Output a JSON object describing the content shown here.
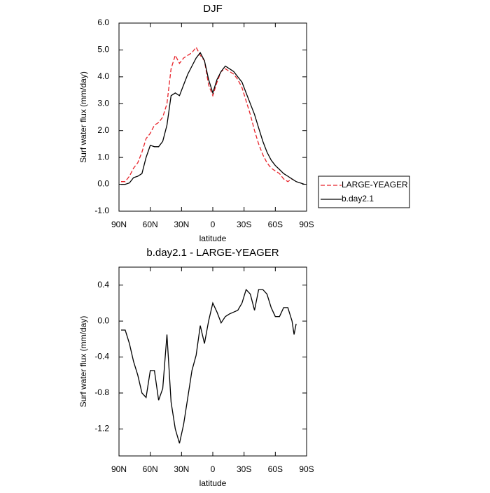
{
  "chart_data": [
    {
      "type": "line",
      "title": "DJF",
      "xlabel": "latitude",
      "ylabel": "Surf water flux (mm/day)",
      "x": [
        88,
        84,
        80,
        76,
        72,
        68,
        64,
        60,
        56,
        52,
        48,
        44,
        40,
        36,
        32,
        28,
        24,
        20,
        16,
        12,
        8,
        4,
        0,
        -4,
        -8,
        -12,
        -16,
        -20,
        -24,
        -28,
        -32,
        -36,
        -40,
        -44,
        -48,
        -52,
        -56,
        -60,
        -64,
        -68,
        -72,
        -76,
        -80,
        -84,
        -88
      ],
      "series": [
        {
          "name": "LARGE-YEAGER",
          "color": "#e8232a",
          "linestyle": "dashed",
          "values": [
            0.1,
            0.1,
            0.3,
            0.6,
            0.8,
            1.2,
            1.7,
            1.9,
            2.2,
            2.3,
            2.5,
            3.0,
            4.3,
            4.8,
            4.5,
            4.7,
            4.8,
            4.9,
            5.1,
            4.8,
            4.6,
            3.7,
            3.3,
            3.8,
            4.2,
            4.3,
            4.2,
            4.1,
            3.9,
            3.6,
            3.1,
            2.6,
            2.0,
            1.5,
            1.1,
            0.8,
            0.6,
            0.5,
            0.4,
            0.2,
            0.1,
            0.2,
            null,
            null,
            null
          ]
        },
        {
          "name": "b.day2.1",
          "color": "#000000",
          "linestyle": "solid",
          "values": [
            0.0,
            0.0,
            0.05,
            0.25,
            0.3,
            0.4,
            1.0,
            1.45,
            1.4,
            1.4,
            1.6,
            2.2,
            3.3,
            3.4,
            3.3,
            3.7,
            4.1,
            4.4,
            4.7,
            4.9,
            4.6,
            3.9,
            3.4,
            3.9,
            4.2,
            4.4,
            4.3,
            4.2,
            4.0,
            3.8,
            3.4,
            3.0,
            2.6,
            2.1,
            1.6,
            1.2,
            0.9,
            0.7,
            0.55,
            0.4,
            0.3,
            0.2,
            0.1,
            0.05,
            0.0
          ]
        }
      ],
      "xlim": [
        90,
        -90
      ],
      "xticks": [
        {
          "value": 90,
          "label": "90N"
        },
        {
          "value": 60,
          "label": "60N"
        },
        {
          "value": 30,
          "label": "30N"
        },
        0,
        {
          "value": -30,
          "label": "30S"
        },
        {
          "value": -60,
          "label": "60S"
        },
        {
          "value": -90,
          "label": "90S"
        }
      ],
      "ylim": [
        -1,
        6
      ],
      "yticks": [
        {
          "value": -1,
          "label": "-1.0"
        },
        {
          "value": 0,
          "label": "0.0"
        },
        {
          "value": 1,
          "label": "1.0"
        },
        {
          "value": 2,
          "label": "2.0"
        },
        {
          "value": 3,
          "label": "3.0"
        },
        {
          "value": 4,
          "label": "4.0"
        },
        {
          "value": 5,
          "label": "5.0"
        },
        {
          "value": 6,
          "label": "6.0"
        }
      ],
      "legend": "right",
      "grid": false
    },
    {
      "type": "line",
      "title": "b.day2.1 - LARGE-YEAGER",
      "xlabel": "latitude",
      "ylabel": "Surf water flux (mm/day)",
      "x": [
        88,
        84,
        80,
        76,
        72,
        68,
        64,
        60,
        56,
        52,
        48,
        44,
        40,
        36,
        32,
        28,
        24,
        20,
        16,
        12,
        8,
        4,
        0,
        -4,
        -8,
        -12,
        -16,
        -20,
        -24,
        -28,
        -32,
        -36,
        -40,
        -44,
        -48,
        -52,
        -56,
        -60,
        -64,
        -68,
        -72,
        -76,
        -78,
        -80
      ],
      "series": [
        {
          "color": "#000000",
          "linestyle": "solid",
          "values": [
            -0.1,
            -0.1,
            -0.25,
            -0.45,
            -0.6,
            -0.8,
            -0.85,
            -0.55,
            -0.55,
            -0.88,
            -0.75,
            -0.15,
            -0.9,
            -1.2,
            -1.36,
            -1.15,
            -0.85,
            -0.55,
            -0.38,
            -0.05,
            -0.25,
            0.0,
            0.2,
            0.1,
            -0.02,
            0.05,
            0.08,
            0.1,
            0.12,
            0.2,
            0.35,
            0.3,
            0.12,
            0.35,
            0.35,
            0.3,
            0.15,
            0.05,
            0.05,
            0.15,
            0.15,
            0.0,
            -0.15,
            -0.03
          ]
        }
      ],
      "xlim": [
        90,
        -90
      ],
      "xticks": [
        {
          "value": 90,
          "label": "90N"
        },
        {
          "value": 60,
          "label": "60N"
        },
        {
          "value": 30,
          "label": "30N"
        },
        0,
        {
          "value": -30,
          "label": "30S"
        },
        {
          "value": -60,
          "label": "60S"
        },
        {
          "value": -90,
          "label": "90S"
        }
      ],
      "ylim": [
        -1.5,
        0.6
      ],
      "yticks": [
        {
          "value": -1.2,
          "label": "-1.2"
        },
        {
          "value": -0.8,
          "label": "-0.8"
        },
        {
          "value": -0.4,
          "label": "-0.4"
        },
        {
          "value": 0,
          "label": "0.0"
        },
        0.4
      ],
      "grid": false
    }
  ]
}
